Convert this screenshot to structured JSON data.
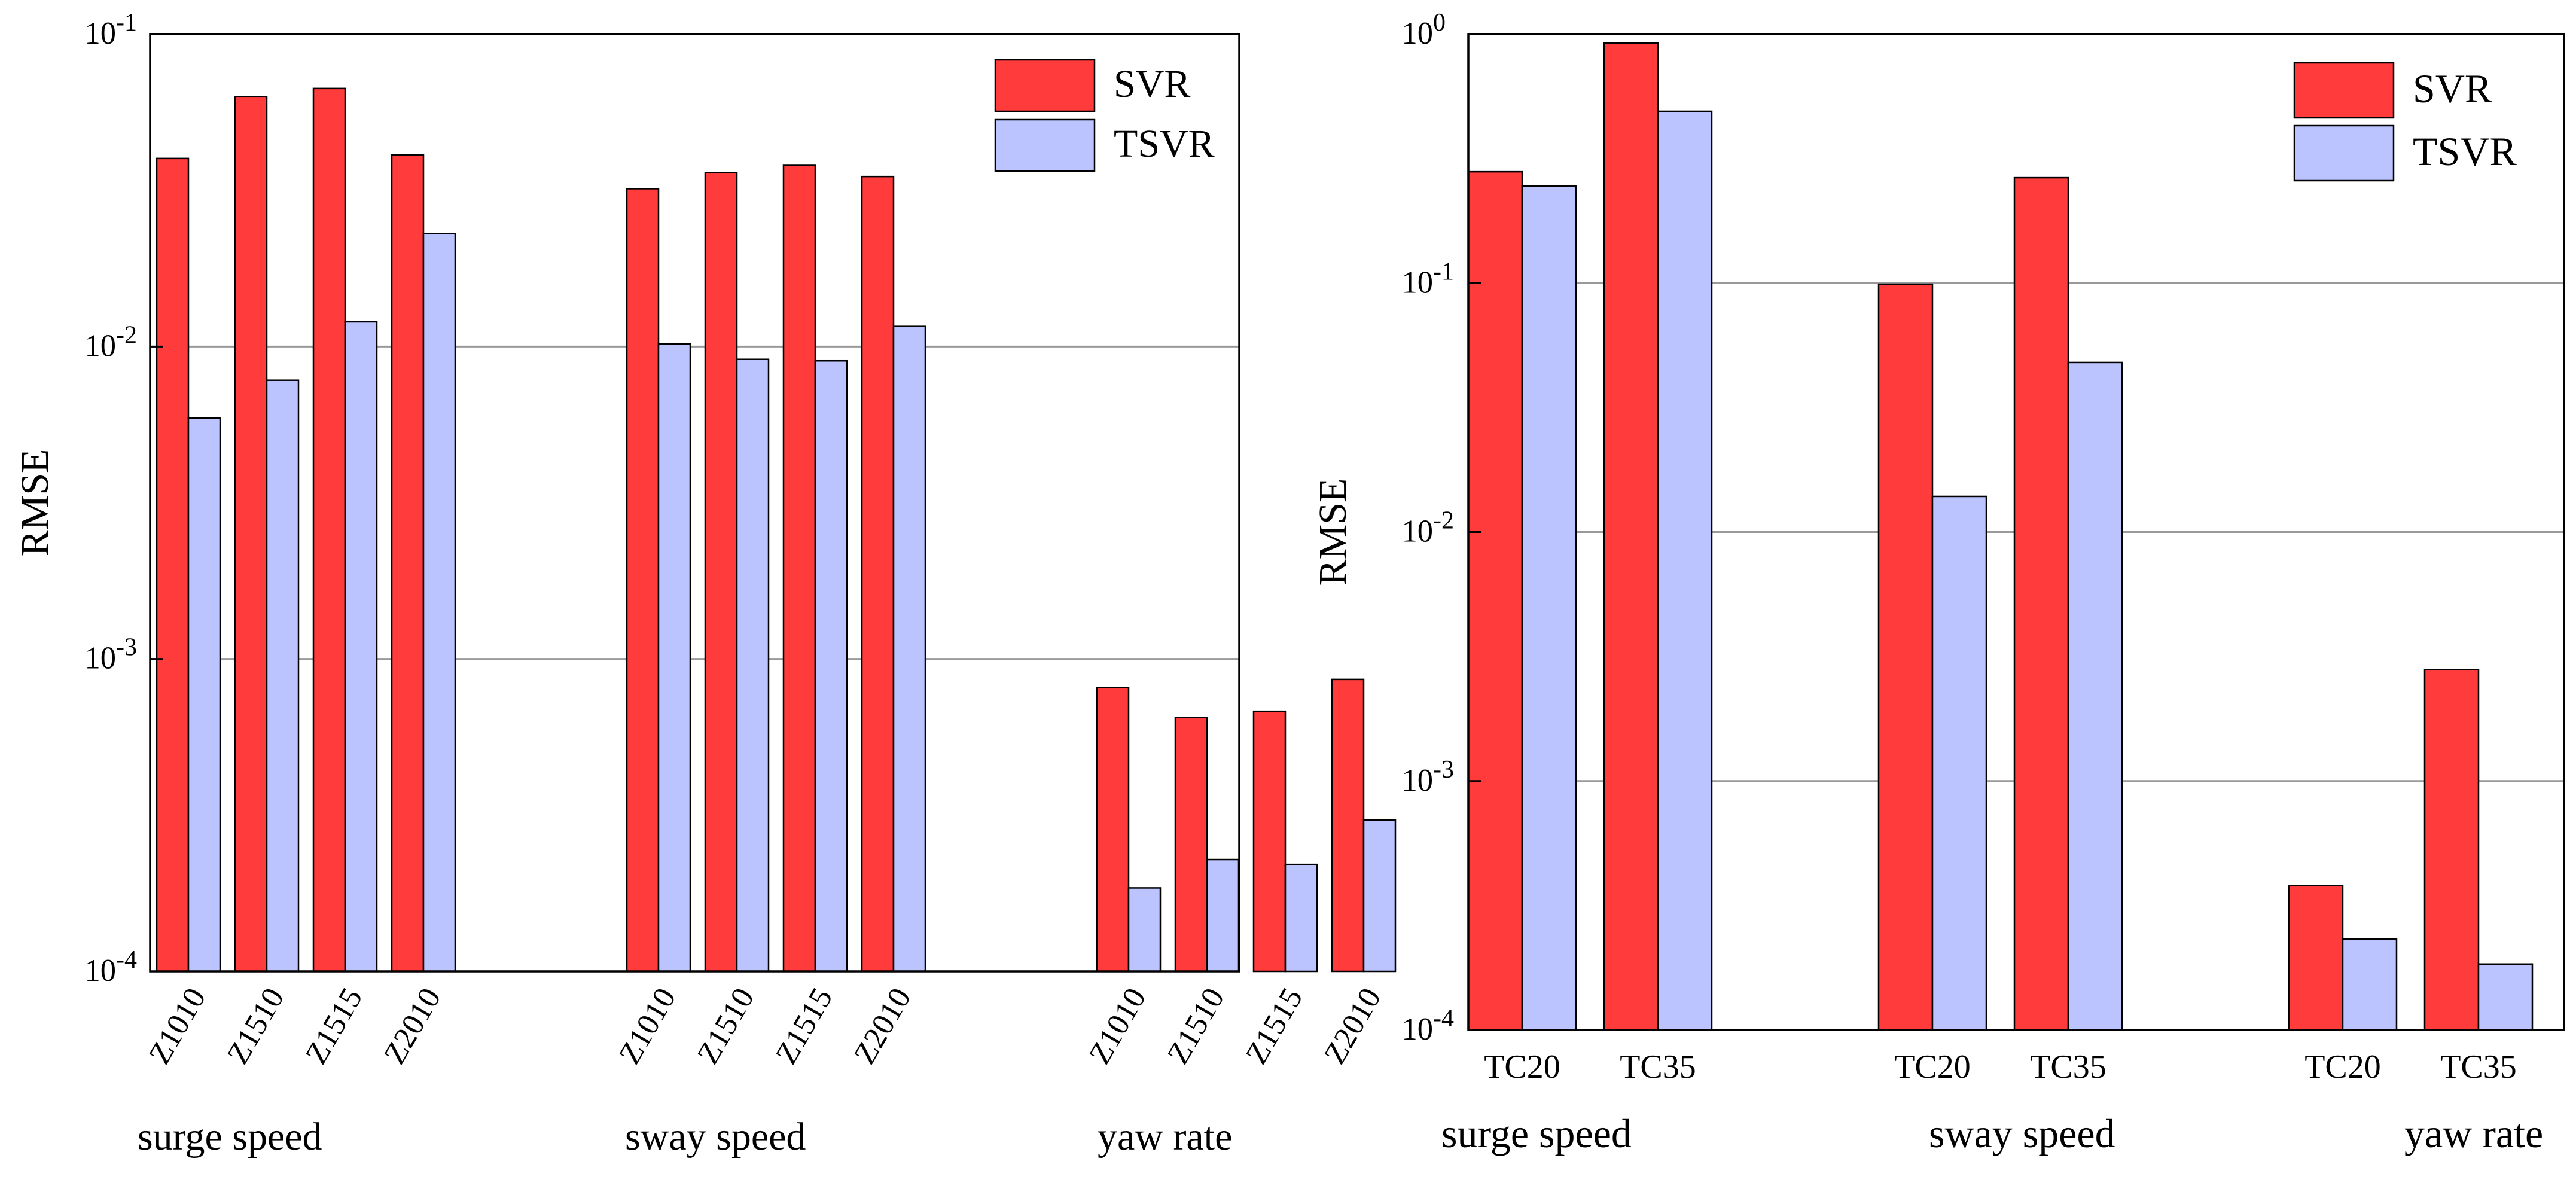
{
  "colors": {
    "svr": "#ff3b3b",
    "tsvr": "#bcc4ff",
    "grid": "#999999",
    "axis": "#000000"
  },
  "chart_data": [
    {
      "type": "bar",
      "yscale": "log",
      "ylabel": "RMSE",
      "ylim": [
        0.0001,
        0.1
      ],
      "yticks": [
        {
          "value": 0.1,
          "base": "10",
          "exp": "-1"
        },
        {
          "value": 0.01,
          "base": "10",
          "exp": "-2"
        },
        {
          "value": 0.001,
          "base": "10",
          "exp": "-3"
        },
        {
          "value": 0.0001,
          "base": "10",
          "exp": "-4"
        }
      ],
      "grid": true,
      "legend": {
        "position": "top-right",
        "entries": [
          "SVR",
          "TSVR"
        ]
      },
      "groups": [
        {
          "label": "surge speed",
          "categories": [
            "Z1010",
            "Z1510",
            "Z1515",
            "Z2010"
          ],
          "series": [
            {
              "name": "SVR",
              "values": [
                0.04,
                0.063,
                0.067,
                0.041
              ]
            },
            {
              "name": "TSVR",
              "values": [
                0.0059,
                0.0078,
                0.012,
                0.023
              ]
            }
          ]
        },
        {
          "label": "sway speed",
          "categories": [
            "Z1010",
            "Z1510",
            "Z1515",
            "Z2010"
          ],
          "series": [
            {
              "name": "SVR",
              "values": [
                0.032,
                0.036,
                0.038,
                0.035
              ]
            },
            {
              "name": "TSVR",
              "values": [
                0.0102,
                0.0091,
                0.009,
                0.0116
              ]
            }
          ]
        },
        {
          "label": "yaw rate",
          "categories": [
            "Z1010",
            "Z1510",
            "Z1515",
            "Z2010"
          ],
          "series": [
            {
              "name": "SVR",
              "values": [
                0.00081,
                0.00065,
                0.00068,
                0.00086
              ]
            },
            {
              "name": "TSVR",
              "values": [
                0.000185,
                0.000228,
                0.00022,
                0.000305
              ]
            }
          ]
        }
      ]
    },
    {
      "type": "bar",
      "yscale": "log",
      "ylabel": "RMSE",
      "ylim": [
        0.0001,
        1
      ],
      "yticks": [
        {
          "value": 1,
          "base": "10",
          "exp": "0"
        },
        {
          "value": 0.1,
          "base": "10",
          "exp": "-1"
        },
        {
          "value": 0.01,
          "base": "10",
          "exp": "-2"
        },
        {
          "value": 0.001,
          "base": "10",
          "exp": "-3"
        },
        {
          "value": 0.0001,
          "base": "10",
          "exp": "-4"
        }
      ],
      "grid": true,
      "legend": {
        "position": "top-right",
        "entries": [
          "SVR",
          "TSVR"
        ]
      },
      "groups": [
        {
          "label": "surge speed",
          "categories": [
            "TC20",
            "TC35"
          ],
          "series": [
            {
              "name": "SVR",
              "values": [
                0.28,
                0.92
              ]
            },
            {
              "name": "TSVR",
              "values": [
                0.245,
                0.49
              ]
            }
          ]
        },
        {
          "label": "sway speed",
          "categories": [
            "TC20",
            "TC35"
          ],
          "series": [
            {
              "name": "SVR",
              "values": [
                0.099,
                0.265
              ]
            },
            {
              "name": "TSVR",
              "values": [
                0.0139,
                0.048
              ]
            }
          ]
        },
        {
          "label": "yaw rate",
          "categories": [
            "TC20",
            "TC35"
          ],
          "series": [
            {
              "name": "SVR",
              "values": [
                0.00038,
                0.0028
              ]
            },
            {
              "name": "TSVR",
              "values": [
                0.000232,
                0.000184
              ]
            }
          ]
        }
      ]
    }
  ]
}
